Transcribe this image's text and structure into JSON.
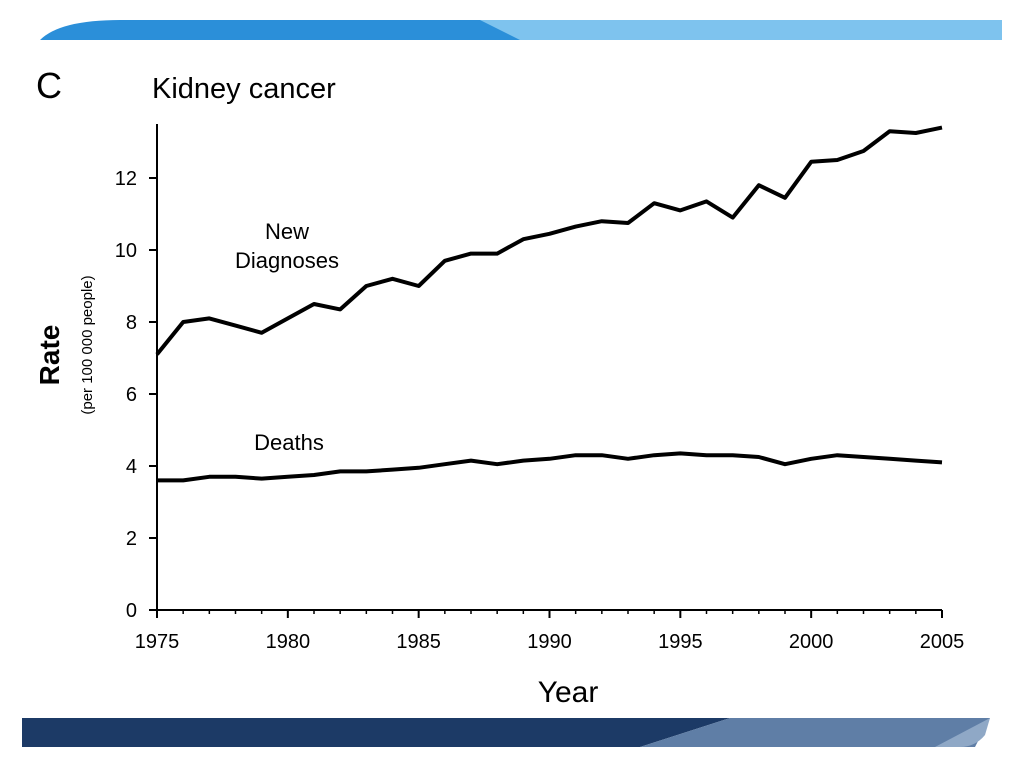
{
  "panel_label": "C",
  "colors": {
    "top_band_dark": "#2b8fd9",
    "top_band_light": "#7ec3ee",
    "bottom_band_dark": "#1c3a66",
    "bottom_band_light": "#8fa8c6",
    "line": "#000000"
  },
  "chart_data": {
    "type": "line",
    "title": "Kidney cancer",
    "xlabel": "Year",
    "ylabel": "Rate",
    "ylabel_sub": "(per 100 000 people)",
    "xlim": [
      1975,
      2005
    ],
    "ylim": [
      0,
      13.5
    ],
    "x_ticks": [
      1975,
      1980,
      1985,
      1990,
      1995,
      2000,
      2005
    ],
    "y_ticks": [
      0,
      2,
      4,
      6,
      8,
      10,
      12
    ],
    "grid": false,
    "x": [
      1975,
      1976,
      1977,
      1978,
      1979,
      1980,
      1981,
      1982,
      1983,
      1984,
      1985,
      1986,
      1987,
      1988,
      1989,
      1990,
      1991,
      1992,
      1993,
      1994,
      1995,
      1996,
      1997,
      1998,
      1999,
      2000,
      2001,
      2002,
      2003,
      2004,
      2005
    ],
    "series": [
      {
        "name": "New Diagnoses",
        "label_lines": [
          "New",
          "Diagnoses"
        ],
        "values": [
          7.1,
          8.0,
          8.1,
          7.9,
          7.7,
          8.1,
          8.5,
          8.35,
          9.0,
          9.2,
          9.0,
          9.7,
          9.9,
          9.9,
          10.3,
          10.45,
          10.65,
          10.8,
          10.75,
          11.3,
          11.1,
          11.35,
          10.9,
          11.8,
          11.45,
          12.45,
          12.5,
          12.75,
          13.3,
          13.25,
          13.4
        ]
      },
      {
        "name": "Deaths",
        "label_lines": [
          "Deaths"
        ],
        "values": [
          3.6,
          3.6,
          3.7,
          3.7,
          3.65,
          3.7,
          3.75,
          3.85,
          3.85,
          3.9,
          3.95,
          4.05,
          4.15,
          4.05,
          4.15,
          4.2,
          4.3,
          4.3,
          4.2,
          4.3,
          4.35,
          4.3,
          4.3,
          4.25,
          4.05,
          4.2,
          4.3,
          4.25,
          4.2,
          4.15,
          4.1
        ]
      }
    ]
  }
}
